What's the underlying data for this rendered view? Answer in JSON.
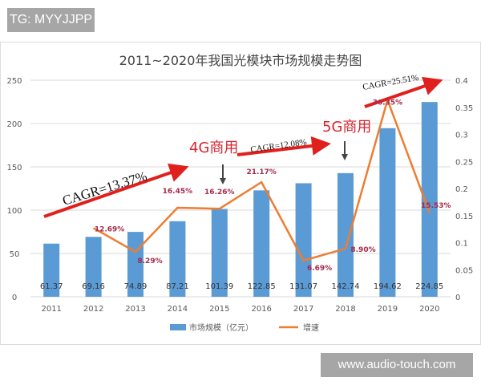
{
  "watermark_top": "TG: MYYJJPP",
  "watermark_bottom": "www.audio-touch.com",
  "chart_data": {
    "type": "bar+line",
    "title": "2011~2020年我国光模块市场规模走势图",
    "categories": [
      "2011",
      "2012",
      "2013",
      "2014",
      "2015",
      "2016",
      "2017",
      "2018",
      "2019",
      "2020"
    ],
    "series": [
      {
        "name": "市场规模（亿元）",
        "type": "bar",
        "axis": "left",
        "color": "#5b9bd5",
        "values": [
          61.37,
          69.16,
          74.89,
          87.21,
          101.39,
          122.85,
          131.07,
          142.74,
          194.62,
          224.85
        ],
        "labels": [
          "61.37",
          "69.16",
          "74.89",
          "87.21",
          "101.39",
          "122.85",
          "131.07",
          "142.74",
          "194.62",
          "224.85"
        ]
      },
      {
        "name": "增速",
        "type": "line",
        "axis": "right",
        "color": "#ed7d31",
        "values": [
          null,
          0.1269,
          0.0829,
          0.1645,
          0.1626,
          0.2117,
          0.0669,
          0.089,
          0.3635,
          0.1553
        ],
        "labels": [
          null,
          "12.69%",
          "8.29%",
          "16.45%",
          "16.26%",
          "21.17%",
          "6.69%",
          "8.90%",
          "36.35%",
          "15.53%"
        ]
      }
    ],
    "ylim_left": [
      0,
      250
    ],
    "yticks_left": [
      "0",
      "50",
      "100",
      "150",
      "200",
      "250"
    ],
    "ylim_right": [
      0,
      0.4
    ],
    "yticks_right": [
      "0",
      "0.05",
      "0.1",
      "0.15",
      "0.2",
      "0.25",
      "0.3",
      "0.35",
      "0.4"
    ],
    "grid": true,
    "legend": "bottom",
    "annotations": {
      "cagr1": "CAGR=13.37%",
      "cagr2": "CAGR=12.08%",
      "cagr3": "CAGR=25.51%",
      "g4": "4G商用",
      "g5": "5G商用"
    }
  }
}
